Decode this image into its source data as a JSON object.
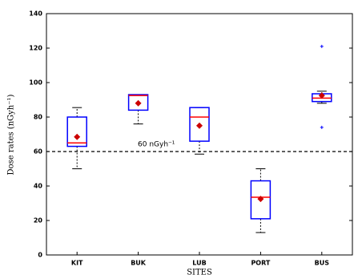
{
  "chart_data": {
    "type": "box",
    "y_label": "Dose rates (nGyh⁻¹)",
    "x_label": "SITES",
    "categories": [
      "KIT",
      "BUK",
      "LUB",
      "PORT",
      "BUS"
    ],
    "boxes": [
      {
        "whislo": 50,
        "q1": 63,
        "med": 65,
        "q3": 80,
        "whishi": 85.5,
        "mean": 68.5,
        "fliers": []
      },
      {
        "whislo": 76,
        "q1": 84,
        "med": 92.5,
        "q3": 93,
        "whishi": 93,
        "mean": 88,
        "fliers": []
      },
      {
        "whislo": 58.5,
        "q1": 66,
        "med": 80,
        "q3": 85.5,
        "whishi": 85.5,
        "mean": 75,
        "fliers": []
      },
      {
        "whislo": 13,
        "q1": 21,
        "med": 33.5,
        "q3": 43,
        "whishi": 50,
        "mean": 32.5,
        "fliers": []
      },
      {
        "whislo": 88,
        "q1": 89,
        "med": 91,
        "q3": 93.5,
        "whishi": 95,
        "mean": 92.5,
        "fliers": [
          121,
          74
        ]
      }
    ],
    "box_color": "#0000ff",
    "median_color": "#ff0000",
    "mean_color": "#cc0000",
    "reference_line": {
      "value": 60,
      "label": "60 nGyh⁻¹"
    },
    "ylim": [
      0,
      140
    ],
    "yticks": [
      0,
      20,
      40,
      60,
      80,
      100,
      120,
      140
    ]
  }
}
